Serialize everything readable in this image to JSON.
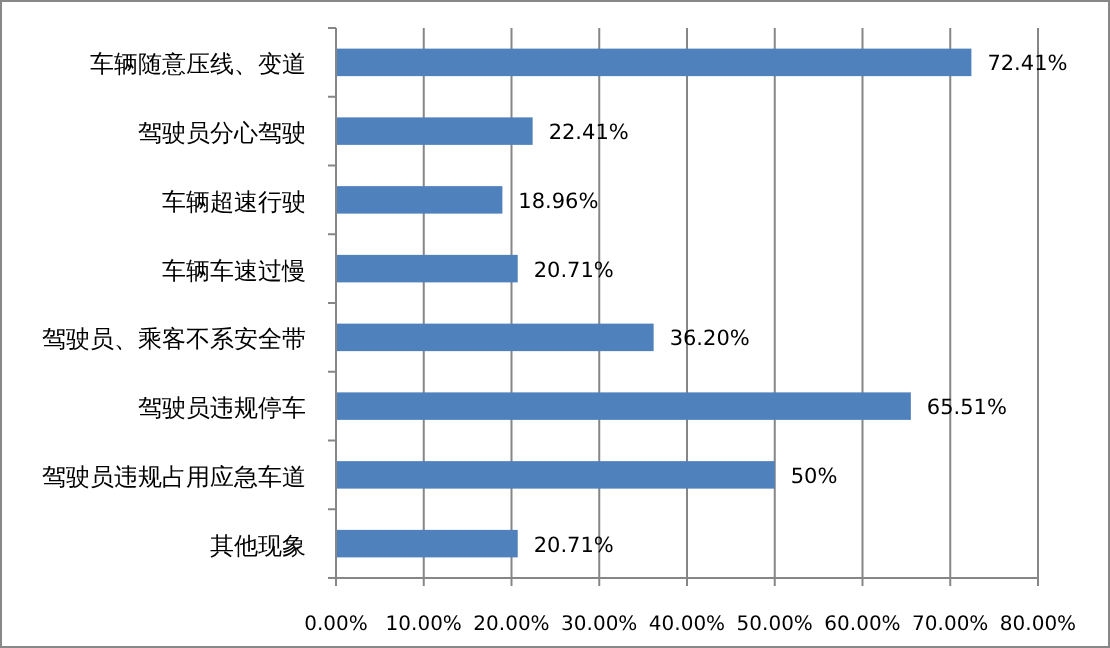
{
  "chart_data": {
    "type": "bar",
    "orientation": "horizontal",
    "categories": [
      "车辆随意压线、变道",
      "驾驶员分心驾驶",
      "车辆超速行驶",
      "车辆车速过慢",
      "驾驶员、乘客不系安全带",
      "驾驶员违规停车",
      "驾驶员违规占用应急车道",
      "其他现象"
    ],
    "values": [
      72.41,
      22.41,
      18.96,
      20.71,
      36.2,
      65.51,
      50,
      20.71
    ],
    "value_labels": [
      "72.41%",
      "22.41%",
      "18.96%",
      "20.71%",
      "36.20%",
      "65.51%",
      "50%",
      "20.71%"
    ],
    "color": "#4f81bd",
    "xlim": [
      0,
      80
    ],
    "xticks": [
      {
        "value": 0,
        "label": "0.00%"
      },
      {
        "value": 10,
        "label": "10.00%"
      },
      {
        "value": 20,
        "label": "20.00%"
      },
      {
        "value": 30,
        "label": "30.00%"
      },
      {
        "value": 40,
        "label": "40.00%"
      },
      {
        "value": 50,
        "label": "50.00%"
      },
      {
        "value": 60,
        "label": "60.00%"
      },
      {
        "value": 70,
        "label": "70.00%"
      },
      {
        "value": 80,
        "label": "80.00%"
      }
    ],
    "grid": "x"
  }
}
